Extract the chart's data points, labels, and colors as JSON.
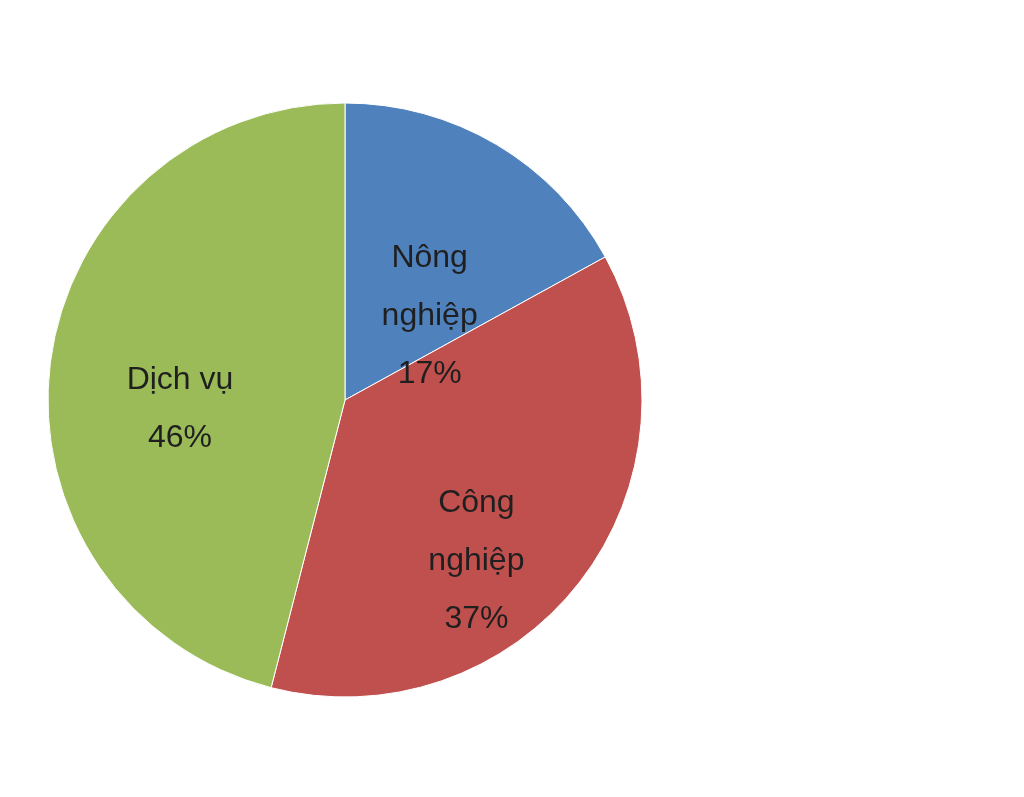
{
  "chart_data": {
    "type": "pie",
    "categories": [
      "Nông nghiệp",
      "Công nghiệp",
      "Dịch vụ"
    ],
    "values": [
      17,
      37,
      46
    ],
    "colors": [
      "#4f81bd",
      "#c0504d",
      "#9bbb59"
    ],
    "value_labels": [
      "17%",
      "37%",
      "46%"
    ]
  }
}
